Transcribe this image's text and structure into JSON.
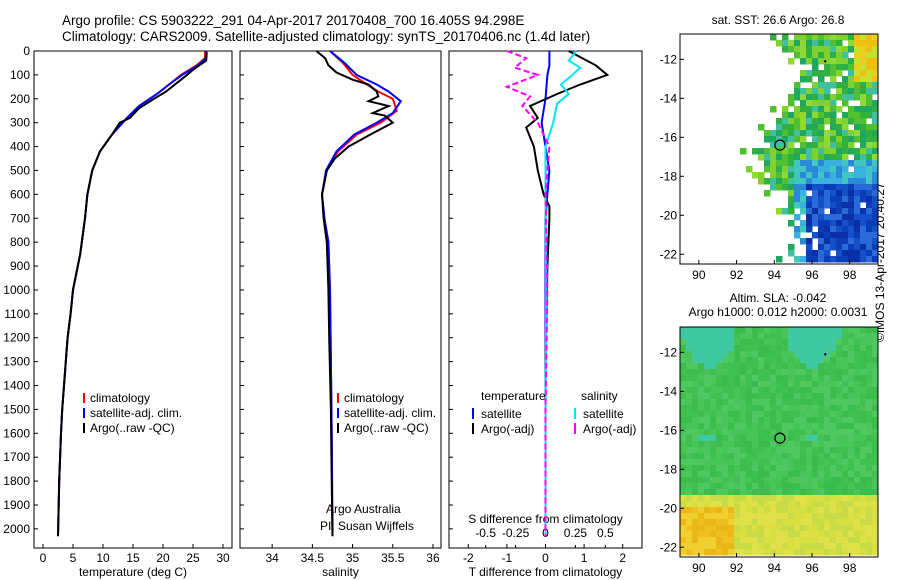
{
  "title_line1": "Argo profile: CS 5903222_291 04-Apr-2017 20170408_700 16.405S 94.298E",
  "title_line2": "Climatology: CARS2009. Satellite-adjusted climatology: synTS_20170406.nc (1.4d later)",
  "side_label": "©IMOS 13-Apr-2017 20:40:27",
  "colors": {
    "climatology": "#ff0000",
    "satellite": "#0000ff",
    "argo": "#000000",
    "cyan": "#00e5ff",
    "magenta": "#ff00ff"
  },
  "chart_data": [
    {
      "type": "line",
      "xlabel": "temperature (deg C)",
      "ylabel": "",
      "xlim": [
        -1.5,
        31.5
      ],
      "ylim": [
        2080,
        0
      ],
      "xticks": [
        "0",
        "5",
        "10",
        "15",
        "20",
        "25",
        "30"
      ],
      "yticks": [
        "0",
        "100",
        "200",
        "300",
        "400",
        "500",
        "600",
        "700",
        "800",
        "900",
        "1000",
        "1100",
        "1200",
        "1300",
        "1400",
        "1500",
        "1600",
        "1700",
        "1800",
        "1900",
        "2000"
      ],
      "legend": [
        "climatology",
        "satellite-adj. clim.",
        "Argo(..raw -QC)"
      ],
      "series": [
        {
          "name": "climatology",
          "color": "climatology",
          "x": [
            27.0,
            27.0,
            25.6,
            23.0,
            21.0,
            19.0,
            16.0,
            14.0,
            11.5,
            9.5,
            8.2,
            7.4,
            7.0,
            6.2,
            5.0,
            4.6,
            4.1,
            3.8,
            3.5,
            3.2,
            3.0,
            2.7,
            2.5
          ],
          "y": [
            0,
            30,
            60,
            100,
            140,
            180,
            230,
            280,
            350,
            420,
            500,
            600,
            700,
            850,
            1000,
            1100,
            1200,
            1300,
            1400,
            1500,
            1600,
            1800,
            2030
          ]
        },
        {
          "name": "satellite-adj. clim.",
          "color": "satellite",
          "x": [
            27.2,
            27.2,
            25.8,
            23.2,
            21.0,
            19.0,
            16.0,
            14.0,
            11.5,
            9.5,
            8.2,
            7.4,
            7.0,
            6.2,
            5.0,
            4.6,
            4.1,
            3.8,
            3.5,
            3.2,
            3.0,
            2.7,
            2.5
          ],
          "y": [
            0,
            30,
            60,
            100,
            140,
            180,
            230,
            280,
            350,
            420,
            500,
            600,
            700,
            850,
            1000,
            1100,
            1200,
            1300,
            1400,
            1500,
            1600,
            1800,
            2030
          ]
        },
        {
          "name": "Argo(..raw -QC)",
          "color": "argo",
          "x": [
            27.3,
            27.2,
            25.2,
            23.5,
            21.5,
            20.5,
            18.5,
            16.0,
            14.5,
            12.8,
            11.5,
            9.5,
            8.2,
            7.4,
            7.0,
            6.2,
            5.0,
            4.6,
            4.1,
            3.8,
            3.5,
            3.2,
            3.0,
            2.7,
            2.5
          ],
          "y": [
            5,
            40,
            75,
            110,
            150,
            170,
            200,
            240,
            280,
            300,
            350,
            420,
            500,
            600,
            700,
            850,
            1000,
            1100,
            1200,
            1300,
            1400,
            1500,
            1600,
            1800,
            2030
          ]
        }
      ]
    },
    {
      "type": "line",
      "xlabel": "salinity",
      "xlim": [
        33.6,
        36.1
      ],
      "ylim": [
        2080,
        0
      ],
      "xticks": [
        "34",
        "34.5",
        "35",
        "35.5",
        "36"
      ],
      "legend": [
        "climatology",
        "satellite-adj. clim.",
        "Argo(..raw -QC)"
      ],
      "annotations": [
        "Argo Australia",
        "PI: Susan Wijffels"
      ],
      "series": [
        {
          "name": "climatology",
          "color": "climatology",
          "x": [
            34.72,
            34.88,
            35.0,
            35.18,
            35.32,
            35.5,
            35.55,
            35.35,
            35.05,
            34.82,
            34.68,
            34.62,
            34.65,
            34.7,
            34.72,
            34.73,
            34.74,
            34.75
          ],
          "y": [
            0,
            50,
            100,
            140,
            170,
            200,
            250,
            300,
            350,
            420,
            500,
            600,
            700,
            800,
            1000,
            1300,
            1600,
            2030
          ]
        },
        {
          "name": "satellite-adj. clim.",
          "color": "satellite",
          "x": [
            34.72,
            34.9,
            35.05,
            35.3,
            35.45,
            35.6,
            35.5,
            35.3,
            35.02,
            34.8,
            34.67,
            34.62,
            34.65,
            34.7,
            34.72,
            34.73,
            34.74,
            34.75
          ],
          "y": [
            0,
            50,
            100,
            140,
            170,
            210,
            260,
            300,
            350,
            420,
            500,
            600,
            700,
            800,
            1000,
            1300,
            1600,
            2030
          ]
        },
        {
          "name": "Argo(..raw -QC)",
          "color": "argo",
          "x": [
            34.55,
            34.66,
            34.7,
            34.8,
            35.0,
            35.2,
            35.3,
            35.32,
            35.2,
            35.45,
            35.25,
            35.4,
            35.5,
            35.22,
            34.95,
            34.78,
            34.68,
            34.62,
            34.64,
            34.68,
            34.7,
            34.71,
            34.73,
            34.74,
            34.75
          ],
          "y": [
            0,
            30,
            60,
            90,
            120,
            140,
            170,
            190,
            210,
            230,
            260,
            270,
            300,
            350,
            400,
            450,
            500,
            600,
            700,
            800,
            1000,
            1200,
            1500,
            1800,
            2030
          ]
        }
      ]
    },
    {
      "type": "line",
      "xlabel": "T difference from climatology",
      "xlabel2": "S difference from climatology",
      "xlim": [
        -2.5,
        2.5
      ],
      "ylim": [
        2080,
        0
      ],
      "xticks": [
        "-2",
        "-1",
        "0",
        "1",
        "2"
      ],
      "xticks2": [
        "-0.5",
        "-0.25",
        "0",
        "0.25",
        "0.5"
      ],
      "legend_groups": {
        "temperature": [
          "satellite",
          "Argo(-adj)"
        ],
        "salinity": [
          "satellite",
          "Argo(-adj)"
        ]
      },
      "legend_titles": [
        "temperature",
        "salinity"
      ],
      "series": [
        {
          "name": "satellite",
          "color": "satellite",
          "x": [
            0.1,
            0.1,
            0.05,
            0,
            -0.1,
            0,
            0.1,
            0.05,
            0,
            0,
            0
          ],
          "y": [
            0,
            60,
            100,
            200,
            300,
            400,
            500,
            600,
            700,
            1000,
            1500
          ]
        },
        {
          "name": "Argo(-adj)",
          "color": "argo",
          "x": [
            0.6,
            1.3,
            1.6,
            0.9,
            0.3,
            -0.4,
            -0.2,
            -0.5,
            -0.3,
            -0.2,
            -0.05,
            0.1,
            0.1,
            0.05,
            0
          ],
          "y": [
            0,
            60,
            100,
            140,
            180,
            230,
            280,
            320,
            400,
            500,
            600,
            650,
            700,
            900,
            1300
          ]
        },
        {
          "name": "satellite",
          "color": "cyan",
          "x": [
            0.8,
            0.6,
            0.9,
            0.7,
            0.4,
            0.6,
            0.3,
            0.2,
            0,
            0,
            0.02,
            0,
            0
          ],
          "y": [
            0,
            40,
            70,
            100,
            140,
            180,
            220,
            300,
            400,
            600,
            1000,
            1500,
            2030
          ]
        },
        {
          "name": "Argo(-adj)",
          "color": "magenta",
          "x": [
            -1.0,
            -0.5,
            -0.8,
            -0.2,
            -1.0,
            -0.4,
            -0.6,
            -0.2,
            0.1,
            0,
            0.05,
            0,
            0
          ],
          "y": [
            0,
            30,
            70,
            100,
            150,
            190,
            230,
            300,
            400,
            600,
            1000,
            1500,
            2030
          ]
        }
      ]
    }
  ],
  "maps": {
    "sst": {
      "title": "sat. SST: 26.6 Argo: 26.8",
      "xticks": [
        "90",
        "92",
        "94",
        "96",
        "98"
      ],
      "yticks": [
        "-12",
        "-14",
        "-16",
        "-18",
        "-20",
        "-22"
      ]
    },
    "sla": {
      "title1": "Altim. SLA: -0.042",
      "title2": "Argo h1000: 0.012 h2000: 0.0031",
      "xticks": [
        "90",
        "92",
        "94",
        "96",
        "98"
      ],
      "yticks": [
        "-12",
        "-14",
        "-16",
        "-18",
        "-20",
        "-22"
      ]
    }
  }
}
